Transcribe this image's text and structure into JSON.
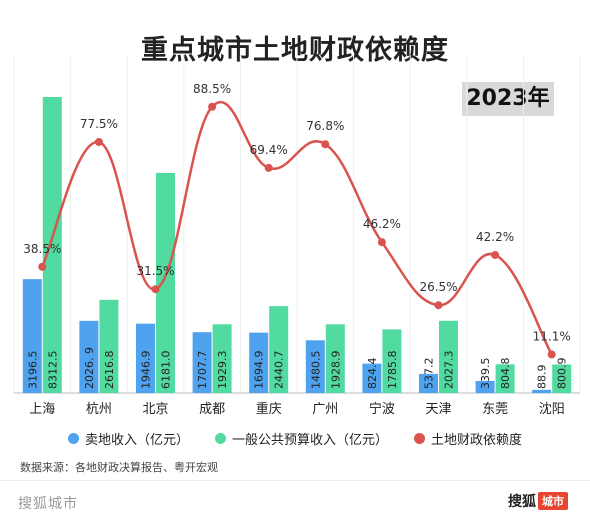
{
  "chart_data": {
    "type": "bar",
    "title": "重点城市土地财政依赖度",
    "year": "2023年",
    "categories": [
      "上海",
      "杭州",
      "北京",
      "成都",
      "重庆",
      "广州",
      "宁波",
      "天津",
      "东莞",
      "沈阳"
    ],
    "series": [
      {
        "name": "卖地收入（亿元）",
        "type": "bar",
        "color": "#4fa3ee",
        "values": [
          3196.5,
          2026.9,
          1946.9,
          1707.7,
          1694.9,
          1480.5,
          824.4,
          537.2,
          339.5,
          88.9
        ],
        "labels": [
          "3196.5",
          "2026. 9",
          "1946.9",
          "1707.7",
          "1694.9",
          "1480.5",
          "824.4",
          "537.2",
          "339.5",
          "88.9"
        ]
      },
      {
        "name": "一般公共预算收入（亿元）",
        "type": "bar",
        "color": "#52dba0",
        "values": [
          8312.5,
          2616.8,
          6181.0,
          1929.3,
          2440.7,
          1928.9,
          1785.8,
          2027.3,
          804.8,
          800.9
        ],
        "labels": [
          "8312.5",
          "2616.8",
          "6181.0",
          "1929.3",
          "2440.7",
          "1928.9",
          "1785.8",
          "2027.3",
          "804.8",
          "800.9"
        ]
      },
      {
        "name": "土地财政依赖度",
        "type": "line",
        "color": "#d9534f",
        "values": [
          38.5,
          77.5,
          31.5,
          88.5,
          69.4,
          76.8,
          46.2,
          26.5,
          42.2,
          11.1
        ],
        "labels": [
          "38.5%",
          "77.5%",
          "31.5%",
          "88.5%",
          "69.4%",
          "76.8%",
          "46.2%",
          "26.5%",
          "42.2%",
          "11.1%"
        ]
      }
    ],
    "ylim": [
      0,
      9000
    ],
    "ylim_right": [
      0,
      100
    ],
    "grid": true,
    "legend_position": "bottom"
  },
  "source_text": "数据来源：各地财政决算报告、粤开宏观",
  "footer": {
    "site": "搜狐城市",
    "logo_text": "搜狐",
    "logo_badge": "城市"
  }
}
